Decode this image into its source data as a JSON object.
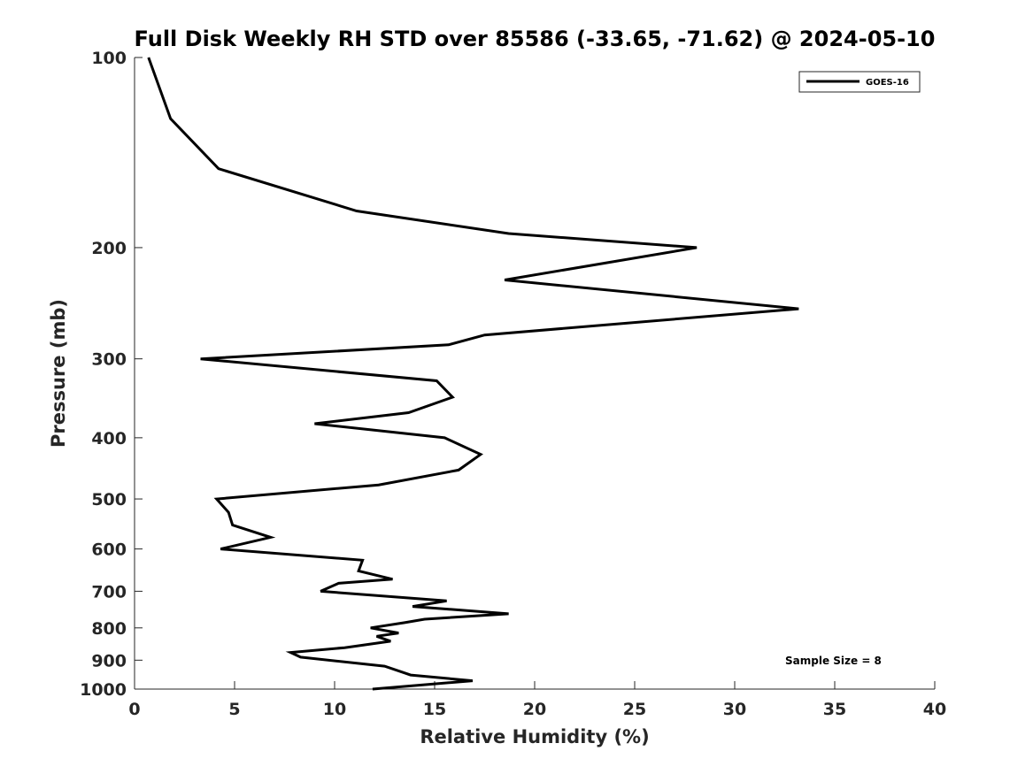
{
  "chart_data": {
    "type": "line",
    "title": "Full Disk Weekly RH STD over 85586 (-33.65, -71.62) @ 2024-05-10",
    "xlabel": "Relative Humidity (%)",
    "ylabel": "Pressure (mb)",
    "xlim": [
      0,
      40
    ],
    "ylim": [
      100,
      1000
    ],
    "y_scale": "log",
    "y_reversed": true,
    "x_ticks": [
      0,
      5,
      10,
      15,
      20,
      25,
      30,
      35,
      40
    ],
    "y_ticks": [
      100,
      200,
      300,
      400,
      500,
      600,
      700,
      800,
      900,
      1000
    ],
    "grid": false,
    "legend_position": "top-right",
    "annotation": "Sample Size = 8",
    "series": [
      {
        "name": "GOES-16",
        "color": "#000000",
        "points": [
          [
            0.7,
            100
          ],
          [
            1.8,
            125
          ],
          [
            4.2,
            150
          ],
          [
            11.1,
            175
          ],
          [
            18.7,
            190
          ],
          [
            28.1,
            200
          ],
          [
            18.5,
            225
          ],
          [
            33.2,
            250
          ],
          [
            17.5,
            275
          ],
          [
            15.7,
            285
          ],
          [
            3.3,
            300
          ],
          [
            15.1,
            325
          ],
          [
            15.9,
            345
          ],
          [
            13.7,
            365
          ],
          [
            9.0,
            380
          ],
          [
            15.5,
            400
          ],
          [
            17.3,
            425
          ],
          [
            16.2,
            450
          ],
          [
            12.2,
            475
          ],
          [
            4.1,
            500
          ],
          [
            4.7,
            525
          ],
          [
            4.9,
            550
          ],
          [
            6.8,
            575
          ],
          [
            4.3,
            600
          ],
          [
            11.4,
            625
          ],
          [
            11.2,
            650
          ],
          [
            12.9,
            670
          ],
          [
            10.2,
            680
          ],
          [
            9.3,
            700
          ],
          [
            15.6,
            725
          ],
          [
            13.9,
            740
          ],
          [
            18.7,
            760
          ],
          [
            14.5,
            775
          ],
          [
            13.5,
            785
          ],
          [
            11.8,
            800
          ],
          [
            13.2,
            815
          ],
          [
            12.1,
            825
          ],
          [
            12.8,
            840
          ],
          [
            10.5,
            860
          ],
          [
            7.8,
            875
          ],
          [
            8.3,
            890
          ],
          [
            12.5,
            920
          ],
          [
            13.8,
            950
          ],
          [
            16.9,
            970
          ],
          [
            11.9,
            1000
          ]
        ]
      }
    ]
  }
}
